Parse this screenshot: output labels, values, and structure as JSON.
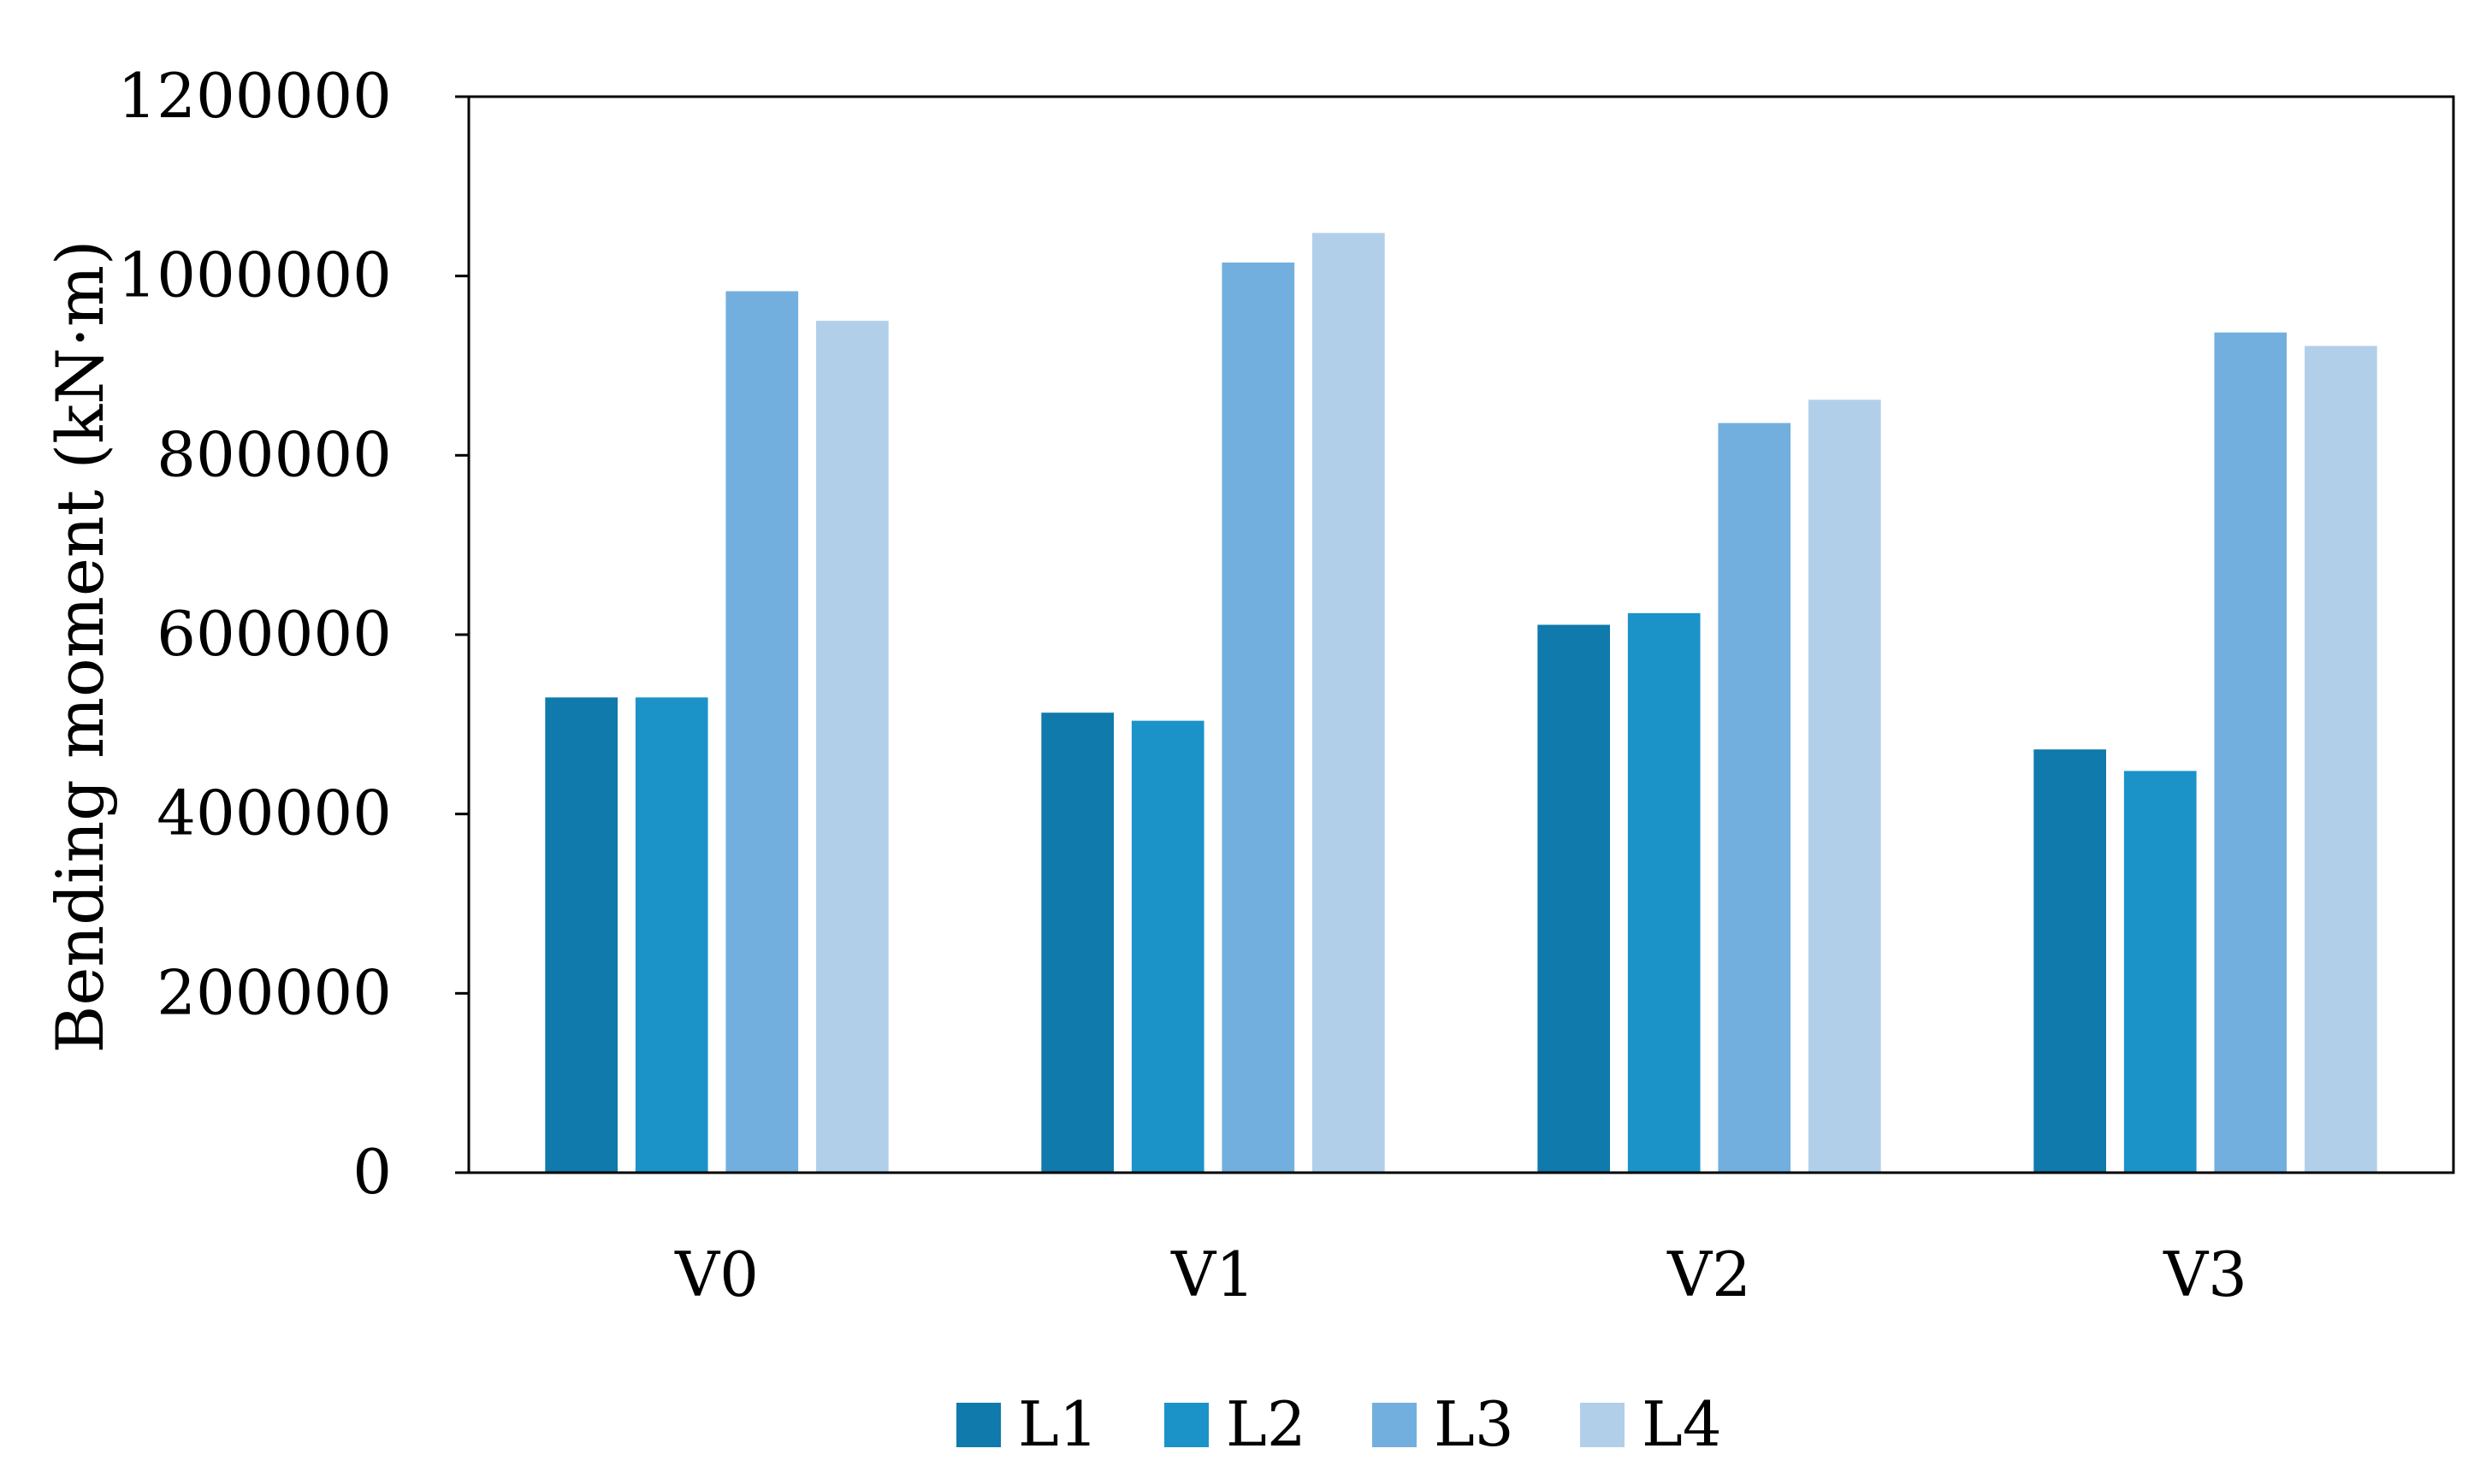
{
  "chart_data": {
    "type": "bar",
    "categories": [
      "V0",
      "V1",
      "V2",
      "V3"
    ],
    "series": [
      {
        "name": "L1",
        "color": "#0f7aab",
        "values": [
          530000,
          513000,
          611000,
          472000
        ]
      },
      {
        "name": "L2",
        "color": "#1b93c9",
        "values": [
          530000,
          504000,
          624000,
          448000
        ]
      },
      {
        "name": "L3",
        "color": "#72afde",
        "values": [
          983000,
          1015000,
          836000,
          937000
        ]
      },
      {
        "name": "L4",
        "color": "#b2cfea",
        "values": [
          950000,
          1048000,
          862000,
          922000
        ]
      }
    ],
    "xlabel": "",
    "ylabel": "Bending moment (kN·m)",
    "ylim": [
      0,
      1200000
    ],
    "yticks": [
      "0",
      "200000",
      "400000",
      "600000",
      "800000",
      "1000000",
      "1200000"
    ],
    "legend_position": "bottom",
    "grid": false
  }
}
